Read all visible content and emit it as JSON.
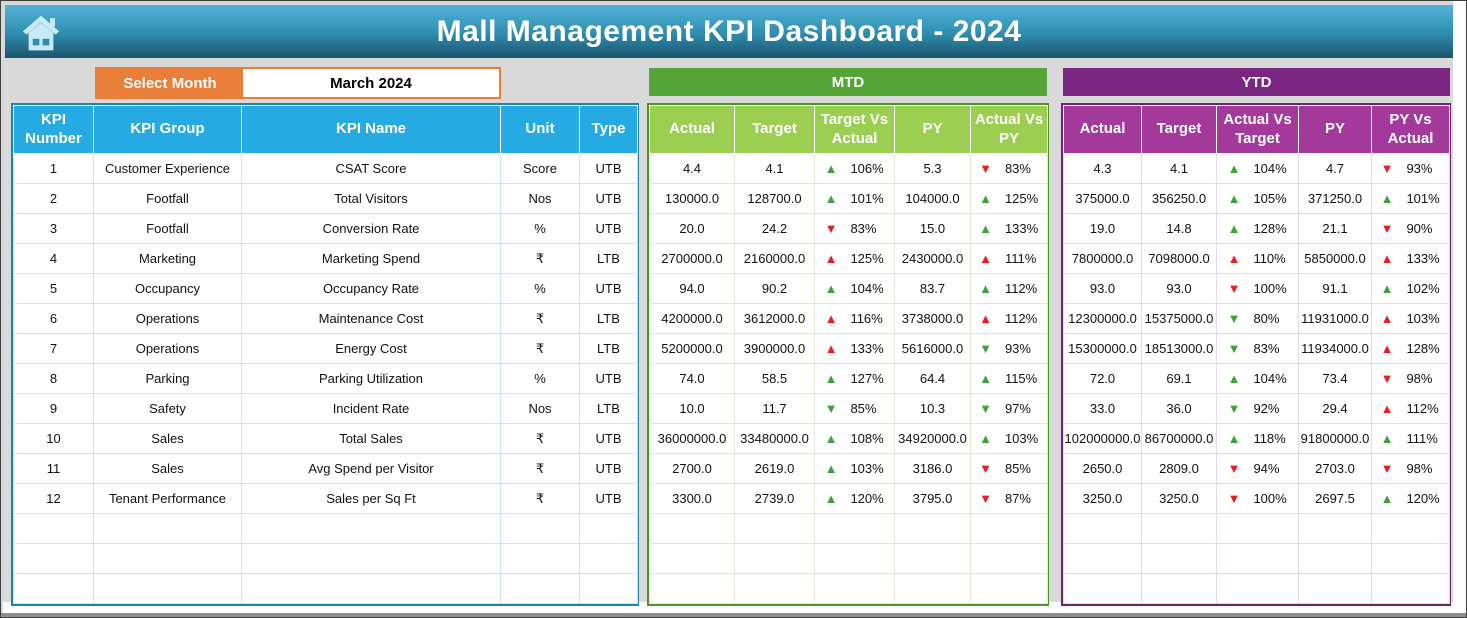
{
  "header": {
    "title": "Mall Management KPI Dashboard - 2024",
    "home_icon": "home-icon"
  },
  "month_selector": {
    "label": "Select Month",
    "value": "March 2024"
  },
  "kpi_table": {
    "headers": [
      "KPI Number",
      "KPI Group",
      "KPI Name",
      "Unit",
      "Type"
    ],
    "rows": [
      [
        "1",
        "Customer Experience",
        "CSAT Score",
        "Score",
        "UTB"
      ],
      [
        "2",
        "Footfall",
        "Total Visitors",
        "Nos",
        "UTB"
      ],
      [
        "3",
        "Footfall",
        "Conversion Rate",
        "%",
        "UTB"
      ],
      [
        "4",
        "Marketing",
        "Marketing Spend",
        "₹",
        "LTB"
      ],
      [
        "5",
        "Occupancy",
        "Occupancy Rate",
        "%",
        "UTB"
      ],
      [
        "6",
        "Operations",
        "Maintenance Cost",
        "₹",
        "LTB"
      ],
      [
        "7",
        "Operations",
        "Energy Cost",
        "₹",
        "LTB"
      ],
      [
        "8",
        "Parking",
        "Parking Utilization",
        "%",
        "UTB"
      ],
      [
        "9",
        "Safety",
        "Incident Rate",
        "Nos",
        "LTB"
      ],
      [
        "10",
        "Sales",
        "Total Sales",
        "₹",
        "UTB"
      ],
      [
        "11",
        "Sales",
        "Avg Spend per Visitor",
        "₹",
        "UTB"
      ],
      [
        "12",
        "Tenant Performance",
        "Sales per Sq Ft",
        "₹",
        "UTB"
      ]
    ],
    "empty_rows": 3
  },
  "mtd": {
    "title": "MTD",
    "headers": [
      "Actual",
      "Target",
      "Target Vs Actual",
      "PY",
      "Actual Vs PY"
    ],
    "rows": [
      [
        "4.4",
        "4.1",
        {
          "dir": "up",
          "color": "green",
          "text": "106%"
        },
        "5.3",
        {
          "dir": "down",
          "color": "red",
          "text": "83%"
        }
      ],
      [
        "130000.0",
        "128700.0",
        {
          "dir": "up",
          "color": "green",
          "text": "101%"
        },
        "104000.0",
        {
          "dir": "up",
          "color": "green",
          "text": "125%"
        }
      ],
      [
        "20.0",
        "24.2",
        {
          "dir": "down",
          "color": "red",
          "text": "83%"
        },
        "15.0",
        {
          "dir": "up",
          "color": "green",
          "text": "133%"
        }
      ],
      [
        "2700000.0",
        "2160000.0",
        {
          "dir": "up",
          "color": "red",
          "text": "125%"
        },
        "2430000.0",
        {
          "dir": "up",
          "color": "red",
          "text": "111%"
        }
      ],
      [
        "94.0",
        "90.2",
        {
          "dir": "up",
          "color": "green",
          "text": "104%"
        },
        "83.7",
        {
          "dir": "up",
          "color": "green",
          "text": "112%"
        }
      ],
      [
        "4200000.0",
        "3612000.0",
        {
          "dir": "up",
          "color": "red",
          "text": "116%"
        },
        "3738000.0",
        {
          "dir": "up",
          "color": "red",
          "text": "112%"
        }
      ],
      [
        "5200000.0",
        "3900000.0",
        {
          "dir": "up",
          "color": "red",
          "text": "133%"
        },
        "5616000.0",
        {
          "dir": "down",
          "color": "green",
          "text": "93%"
        }
      ],
      [
        "74.0",
        "58.5",
        {
          "dir": "up",
          "color": "green",
          "text": "127%"
        },
        "64.4",
        {
          "dir": "up",
          "color": "green",
          "text": "115%"
        }
      ],
      [
        "10.0",
        "11.7",
        {
          "dir": "down",
          "color": "green",
          "text": "85%"
        },
        "10.3",
        {
          "dir": "down",
          "color": "green",
          "text": "97%"
        }
      ],
      [
        "36000000.0",
        "33480000.0",
        {
          "dir": "up",
          "color": "green",
          "text": "108%"
        },
        "34920000.0",
        {
          "dir": "up",
          "color": "green",
          "text": "103%"
        }
      ],
      [
        "2700.0",
        "2619.0",
        {
          "dir": "up",
          "color": "green",
          "text": "103%"
        },
        "3186.0",
        {
          "dir": "down",
          "color": "red",
          "text": "85%"
        }
      ],
      [
        "3300.0",
        "2739.0",
        {
          "dir": "up",
          "color": "green",
          "text": "120%"
        },
        "3795.0",
        {
          "dir": "down",
          "color": "red",
          "text": "87%"
        }
      ]
    ],
    "empty_rows": 3
  },
  "ytd": {
    "title": "YTD",
    "headers": [
      "Actual",
      "Target",
      "Actual Vs Target",
      "PY",
      "PY Vs Actual"
    ],
    "rows": [
      [
        "4.3",
        "4.1",
        {
          "dir": "up",
          "color": "green",
          "text": "104%"
        },
        "4.7",
        {
          "dir": "down",
          "color": "red",
          "text": "93%"
        }
      ],
      [
        "375000.0",
        "356250.0",
        {
          "dir": "up",
          "color": "green",
          "text": "105%"
        },
        "371250.0",
        {
          "dir": "up",
          "color": "green",
          "text": "101%"
        }
      ],
      [
        "19.0",
        "14.8",
        {
          "dir": "up",
          "color": "green",
          "text": "128%"
        },
        "21.1",
        {
          "dir": "down",
          "color": "red",
          "text": "90%"
        }
      ],
      [
        "7800000.0",
        "7098000.0",
        {
          "dir": "up",
          "color": "red",
          "text": "110%"
        },
        "5850000.0",
        {
          "dir": "up",
          "color": "red",
          "text": "133%"
        }
      ],
      [
        "93.0",
        "93.0",
        {
          "dir": "down",
          "color": "red",
          "text": "100%"
        },
        "91.1",
        {
          "dir": "up",
          "color": "green",
          "text": "102%"
        }
      ],
      [
        "12300000.0",
        "15375000.0",
        {
          "dir": "down",
          "color": "green",
          "text": "80%"
        },
        "11931000.0",
        {
          "dir": "up",
          "color": "red",
          "text": "103%"
        }
      ],
      [
        "15300000.0",
        "18513000.0",
        {
          "dir": "down",
          "color": "green",
          "text": "83%"
        },
        "11934000.0",
        {
          "dir": "up",
          "color": "red",
          "text": "128%"
        }
      ],
      [
        "72.0",
        "69.1",
        {
          "dir": "up",
          "color": "green",
          "text": "104%"
        },
        "73.4",
        {
          "dir": "down",
          "color": "red",
          "text": "98%"
        }
      ],
      [
        "33.0",
        "36.0",
        {
          "dir": "down",
          "color": "green",
          "text": "92%"
        },
        "29.4",
        {
          "dir": "up",
          "color": "red",
          "text": "112%"
        }
      ],
      [
        "102000000.0",
        "86700000.0",
        {
          "dir": "up",
          "color": "green",
          "text": "118%"
        },
        "91800000.0",
        {
          "dir": "up",
          "color": "green",
          "text": "111%"
        }
      ],
      [
        "2650.0",
        "2809.0",
        {
          "dir": "down",
          "color": "red",
          "text": "94%"
        },
        "2703.0",
        {
          "dir": "down",
          "color": "red",
          "text": "98%"
        }
      ],
      [
        "3250.0",
        "3250.0",
        {
          "dir": "down",
          "color": "red",
          "text": "100%"
        },
        "2697.5",
        {
          "dir": "up",
          "color": "green",
          "text": "120%"
        }
      ]
    ],
    "empty_rows": 3
  },
  "colors": {
    "title_gradient_top": "#53B5DA",
    "title_gradient_bottom": "#1B536B",
    "table_header_blue": "#25AAE1",
    "mtd_bar_green": "#55A436",
    "mtd_header_green": "#9CCE52",
    "ytd_bar_purple": "#7B2583",
    "ytd_header_purple": "#A33A9B",
    "select_month_orange": "#E87E38",
    "trend_up_green": "#3FA13C",
    "trend_down_red": "#EC1C24",
    "page_background": "#D9D9D9"
  }
}
